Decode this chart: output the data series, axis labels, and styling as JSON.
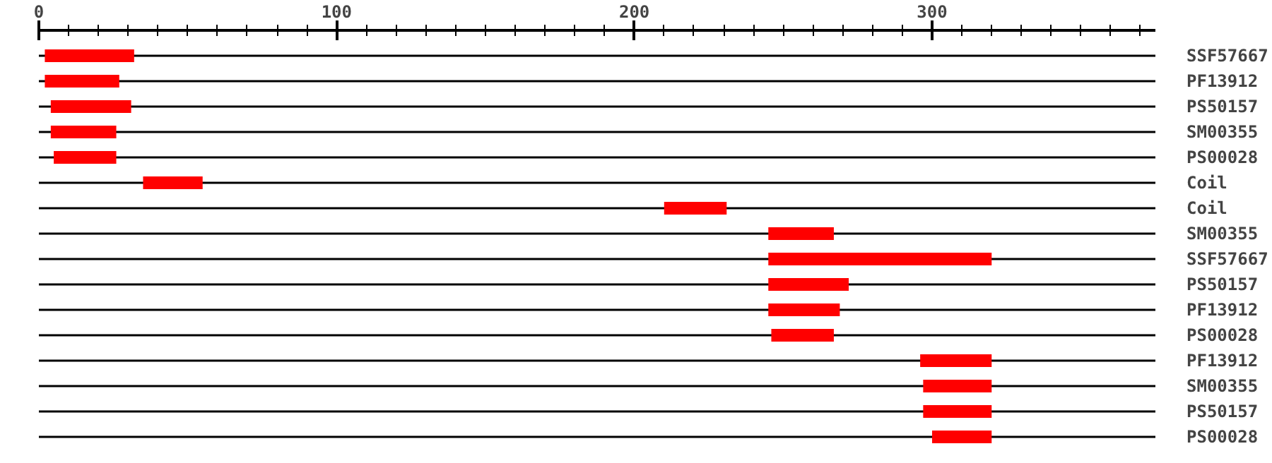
{
  "chart_data": {
    "type": "bar",
    "orientation": "horizontal",
    "categories": [
      "SSF57667",
      "PF13912",
      "PS50157",
      "SM00355",
      "PS00028",
      "Coil",
      "Coil",
      "SM00355",
      "SSF57667",
      "PS50157",
      "PF13912",
      "PS00028",
      "PF13912",
      "SM00355",
      "PS50157",
      "PS00028"
    ],
    "base": [
      2,
      2,
      4,
      4,
      5,
      35,
      210,
      245,
      245,
      245,
      245,
      246,
      296,
      297,
      297,
      300
    ],
    "values": [
      30,
      25,
      27,
      22,
      21,
      20,
      21,
      22,
      75,
      27,
      24,
      21,
      24,
      23,
      23,
      20
    ],
    "color": "#ff0000",
    "xlim": [
      0,
      375
    ],
    "xticks": [
      0,
      {
        "value": 10,
        "label": null
      },
      {
        "value": 20,
        "label": null
      },
      {
        "value": 30,
        "label": null
      },
      {
        "value": 40,
        "label": null
      },
      {
        "value": 50,
        "label": null
      },
      {
        "value": 60,
        "label": null
      },
      {
        "value": 70,
        "label": null
      },
      {
        "value": 80,
        "label": null
      },
      {
        "value": 90,
        "label": null
      },
      100,
      {
        "value": 110,
        "label": null
      },
      {
        "value": 120,
        "label": null
      },
      {
        "value": 130,
        "label": null
      },
      {
        "value": 140,
        "label": null
      },
      {
        "value": 150,
        "label": null
      },
      {
        "value": 160,
        "label": null
      },
      {
        "value": 170,
        "label": null
      },
      {
        "value": 180,
        "label": null
      },
      {
        "value": 190,
        "label": null
      },
      200,
      {
        "value": 210,
        "label": null
      },
      {
        "value": 220,
        "label": null
      },
      {
        "value": 230,
        "label": null
      },
      {
        "value": 240,
        "label": null
      },
      {
        "value": 250,
        "label": null
      },
      {
        "value": 260,
        "label": null
      },
      {
        "value": 270,
        "label": null
      },
      {
        "value": 280,
        "label": null
      },
      {
        "value": 290,
        "label": null
      },
      300,
      {
        "value": 310,
        "label": null
      },
      {
        "value": 320,
        "label": null
      },
      {
        "value": 330,
        "label": null
      },
      {
        "value": 340,
        "label": null
      },
      {
        "value": 350,
        "label": null
      },
      {
        "value": 360,
        "label": null
      },
      {
        "value": 370,
        "label": null
      }
    ],
    "grid": "y"
  }
}
